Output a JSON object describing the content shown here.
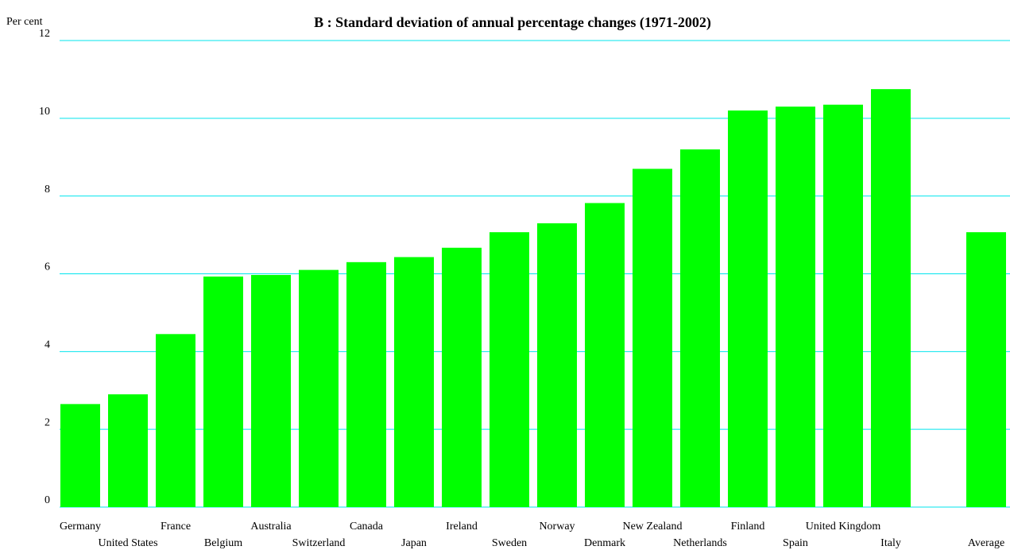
{
  "chart_data": {
    "type": "bar",
    "title": "B : Standard deviation of annual percentage changes (1971-2002)",
    "y_label": "Per cent",
    "categories": [
      "Germany",
      "United States",
      "France",
      "Belgium",
      "Australia",
      "Switzerland",
      "Canada",
      "Japan",
      "Ireland",
      "Sweden",
      "Norway",
      "Denmark",
      "New Zealand",
      "Netherlands",
      "Finland",
      "Spain",
      "United Kingdom",
      "Italy",
      null,
      "Average"
    ],
    "values": [
      2.65,
      2.9,
      4.45,
      5.93,
      5.97,
      6.1,
      6.3,
      6.43,
      6.67,
      7.07,
      7.3,
      7.82,
      8.7,
      9.2,
      10.2,
      10.3,
      10.35,
      10.75,
      null,
      7.07
    ],
    "color": "#00ff00",
    "ylim": [
      0,
      12
    ],
    "yticks": [
      0,
      2,
      4,
      6,
      8,
      10,
      12
    ],
    "grid": true,
    "grid_color": "#00e5ee"
  }
}
